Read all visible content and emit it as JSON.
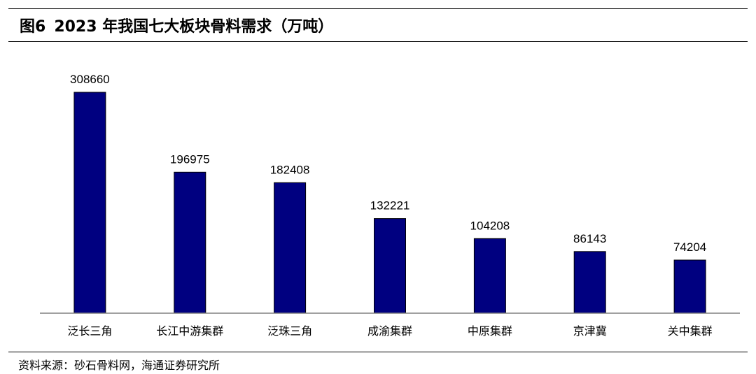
{
  "header": {
    "figure_label": "图6",
    "title": "2023 年我国七大板块骨料需求（万吨）"
  },
  "footer": {
    "source": "资料来源：砂石骨料网，海通证券研究所"
  },
  "colors": {
    "bar_fill": "#000080",
    "bar_stroke": "#000000",
    "axis": "#808080"
  },
  "chart_data": {
    "type": "bar",
    "title": "2023 年我国七大板块骨料需求（万吨）",
    "categories": [
      "泛长三角",
      "长江中游集群",
      "泛珠三角",
      "成渝集群",
      "中原集群",
      "京津冀",
      "关中集群"
    ],
    "values": [
      308660,
      196975,
      182408,
      132221,
      104208,
      86143,
      74204
    ],
    "data_labels": [
      "308660",
      "196975",
      "182408",
      "132221",
      "104208",
      "86143",
      "74204"
    ],
    "xlabel": "",
    "ylabel": "",
    "ylim": [
      0,
      308660
    ],
    "grid": false,
    "legend": "none",
    "y_axis_visible": false
  }
}
